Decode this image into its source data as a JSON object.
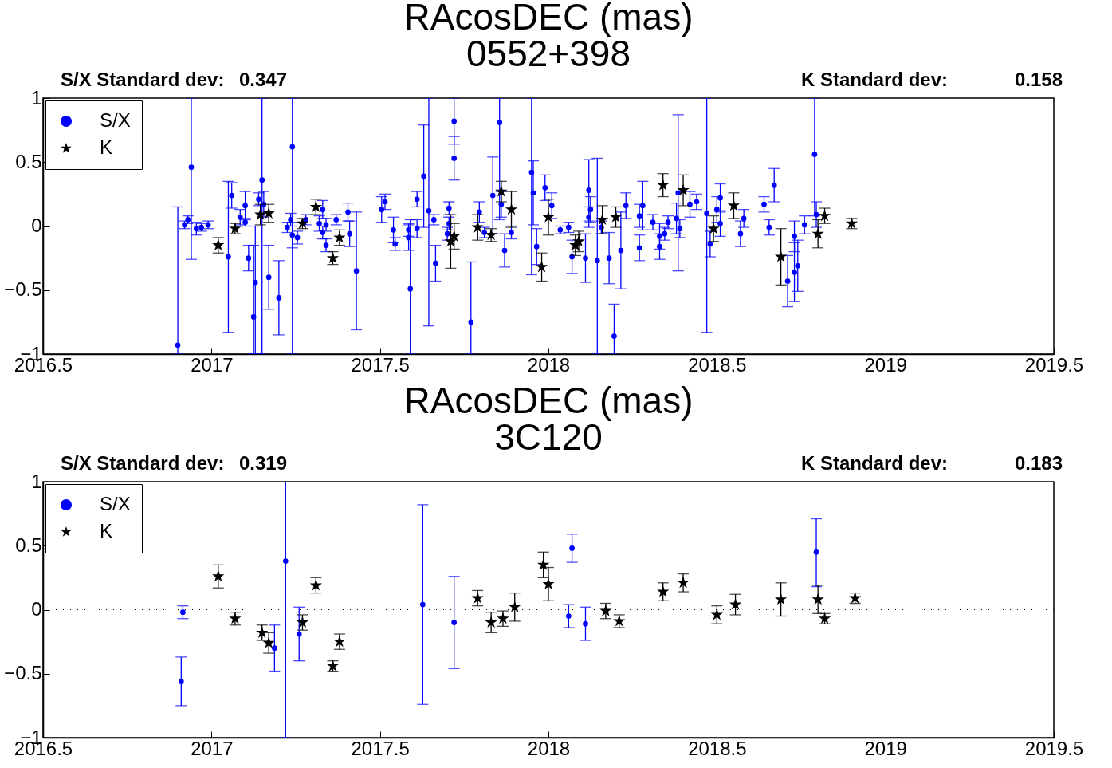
{
  "chart_data": [
    {
      "type": "scatter",
      "title": "RAcosDEC (mas)",
      "subtitle": "0552+398",
      "annotations": [
        "S/X Standard dev:",
        "0.347",
        "K Standard dev:",
        "0.158"
      ],
      "xlim": [
        2016.5,
        2019.5
      ],
      "xticks": [
        2016.5,
        2017,
        2017.5,
        2018,
        2018.5,
        2019,
        2019.5
      ],
      "ylim": [
        -1,
        1
      ],
      "yticks": [
        -1,
        -0.5,
        0,
        0.5,
        1
      ],
      "legend": "top left",
      "ref_lines": [
        {
          "axis": "y",
          "value": 0,
          "color": "#000000",
          "line_style": "dotted"
        }
      ],
      "series": [
        {
          "name": "S/X",
          "color": "#0000ff",
          "marker": "circle",
          "x": [
            2016.9,
            2016.92,
            2016.93,
            2016.94,
            2016.955,
            2016.97,
            2016.99,
            2017.05,
            2017.06,
            2017.085,
            2017.1,
            2017.1,
            2017.11,
            2017.125,
            2017.13,
            2017.14,
            2017.15,
            2017.155,
            2017.17,
            2017.2,
            2017.225,
            2017.235,
            2017.24,
            2017.24,
            2017.255,
            2017.28,
            2017.32,
            2017.33,
            2017.33,
            2017.34,
            2017.34,
            2017.37,
            2017.405,
            2017.41,
            2017.43,
            2017.505,
            2017.515,
            2017.54,
            2017.545,
            2017.585,
            2017.585,
            2017.59,
            2017.61,
            2017.61,
            2017.63,
            2017.645,
            2017.66,
            2017.665,
            2017.7,
            2017.705,
            2017.705,
            2017.72,
            2017.72,
            2017.77,
            2017.795,
            2017.81,
            2017.835,
            2017.855,
            2017.86,
            2017.87,
            2017.89,
            2017.95,
            2017.955,
            2017.965,
            2017.99,
            2018.01,
            2018.035,
            2018.06,
            2018.07,
            2018.11,
            2018.12,
            2018.12,
            2018.125,
            2018.145,
            2018.157,
            2018.18,
            2018.195,
            2018.215,
            2018.23,
            2018.27,
            2018.27,
            2018.28,
            2018.31,
            2018.33,
            2018.33,
            2018.345,
            2018.355,
            2018.38,
            2018.385,
            2018.39,
            2018.42,
            2018.44,
            2018.47,
            2018.48,
            2018.5,
            2018.51,
            2018.51,
            2018.57,
            2018.58,
            2018.64,
            2018.655,
            2018.67,
            2018.71,
            2018.73,
            2018.73,
            2018.74,
            2018.76,
            2018.79,
            2018.795
          ],
          "values": [
            -0.93,
            0.01,
            0.05,
            0.46,
            -0.02,
            -0.01,
            0.01,
            -0.24,
            0.24,
            0.07,
            0.03,
            0.16,
            -0.25,
            -0.71,
            -0.44,
            0.21,
            0.36,
            0.17,
            -0.4,
            -0.56,
            -0.01,
            0.05,
            0.62,
            -0.07,
            -0.09,
            0.05,
            0.02,
            0.13,
            -0.05,
            0.01,
            -0.15,
            0.05,
            0.11,
            -0.06,
            -0.35,
            0.13,
            0.19,
            -0.03,
            -0.14,
            -0.03,
            -0.09,
            -0.49,
            0.21,
            -0.02,
            0.39,
            0.12,
            0.05,
            -0.29,
            -0.06,
            0.14,
            0.02,
            0.82,
            0.53,
            -0.75,
            0.11,
            -0.05,
            0.24,
            0.81,
            0.17,
            -0.19,
            -0.05,
            0.42,
            0.26,
            -0.16,
            0.3,
            0.16,
            -0.03,
            -0.01,
            -0.24,
            -0.25,
            0.28,
            0.07,
            0.13,
            -0.27,
            -0.01,
            -0.25,
            -0.86,
            -0.19,
            0.16,
            0.08,
            -0.17,
            0.16,
            0.03,
            -0.08,
            -0.16,
            -0.06,
            0.03,
            0.06,
            0.26,
            -0.02,
            0.17,
            0.19,
            0.1,
            -0.14,
            0.13,
            0.22,
            0.02,
            -0.06,
            0.06,
            0.17,
            -0.01,
            0.32,
            -0.43,
            -0.08,
            -0.36,
            -0.31,
            0.01,
            0.56,
            0.09
          ],
          "errors": [
            [
              -1,
              0.15
            ],
            0.03,
            0.03,
            [
              -0.26,
              1
            ],
            0.05,
            0.03,
            0.03,
            0.59,
            0.1,
            0.06,
            0.03,
            0.11,
            0.1,
            [
              -1,
              -0.15
            ],
            [
              -1,
              0.0
            ],
            0.05,
            [
              -1,
              1
            ],
            0.1,
            0.25,
            0.29,
            0.04,
            0.05,
            [
              -1,
              1
            ],
            0.1,
            0.05,
            0.04,
            0.06,
            0.07,
            0.05,
            0.05,
            0.05,
            0.04,
            0.07,
            0.1,
            0.46,
            0.1,
            0.06,
            0.1,
            0.05,
            0.05,
            0.1,
            [
              -1,
              0.05
            ],
            0.06,
            0.07,
            0.4,
            [
              -0.78,
              1
            ],
            0.04,
            0.14,
            0.05,
            0.05,
            0.05,
            0.18,
            0.17,
            [
              -1,
              -0.28
            ],
            0.08,
            0.04,
            0.3,
            [
              0.05,
              1
            ],
            0.1,
            0.13,
            0.05,
            [
              -0.38,
              1
            ],
            0.25,
            0.14,
            0.1,
            0.1,
            0.03,
            0.04,
            0.13,
            0.19,
            0.24,
            0.08,
            0.1,
            [
              -1,
              0.53
            ],
            0.05,
            0.2,
            [
              -1,
              -0.61
            ],
            0.3,
            0.1,
            0.09,
            0.1,
            0.19,
            0.06,
            0.1,
            0.1,
            0.05,
            0.05,
            0.12,
            0.61,
            0.07,
            0.1,
            0.06,
            [
              -0.83,
              1
            ],
            0.1,
            0.1,
            0.11,
            0.1,
            0.1,
            0.07,
            0.06,
            0.06,
            0.13,
            0.2,
            0.12,
            0.23,
            0.2,
            0.07,
            [
              0.08,
              1
            ],
            0.1
          ]
        },
        {
          "name": "K",
          "color": "#000000",
          "marker": "star",
          "x": [
            2017.02,
            2017.07,
            2017.145,
            2017.17,
            2017.27,
            2017.31,
            2017.36,
            2017.38,
            2017.71,
            2017.72,
            2017.79,
            2017.83,
            2017.86,
            2017.89,
            2017.98,
            2018.0,
            2018.08,
            2018.09,
            2018.16,
            2018.2,
            2018.34,
            2018.4,
            2018.49,
            2018.55,
            2018.69,
            2018.8,
            2018.82,
            2018.9
          ],
          "values": [
            -0.15,
            -0.02,
            0.09,
            0.1,
            0.02,
            0.15,
            -0.25,
            -0.09,
            -0.12,
            -0.08,
            -0.01,
            -0.07,
            0.27,
            0.13,
            -0.32,
            0.07,
            -0.15,
            -0.12,
            0.05,
            0.07,
            0.32,
            0.28,
            -0.02,
            0.16,
            -0.24,
            -0.06,
            0.08,
            0.02
          ],
          "errors": [
            0.06,
            0.04,
            0.08,
            0.07,
            0.04,
            0.06,
            0.05,
            0.06,
            0.21,
            0.1,
            0.1,
            0.05,
            0.08,
            0.14,
            0.11,
            0.14,
            0.08,
            0.08,
            0.11,
            0.08,
            0.09,
            0.12,
            0.1,
            0.1,
            0.22,
            0.11,
            0.06,
            0.04
          ]
        }
      ]
    },
    {
      "type": "scatter",
      "title": "RAcosDEC (mas)",
      "subtitle": "3C120",
      "annotations": [
        "S/X Standard dev:",
        "0.319",
        "K Standard dev:",
        "0.183"
      ],
      "xlim": [
        2016.5,
        2019.5
      ],
      "xticks": [
        2016.5,
        2017,
        2017.5,
        2018,
        2018.5,
        2019,
        2019.5
      ],
      "ylim": [
        -1,
        1
      ],
      "yticks": [
        -1,
        -0.5,
        0,
        0.5,
        1
      ],
      "legend": "top left",
      "ref_lines": [
        {
          "axis": "y",
          "value": 0,
          "color": "#000000",
          "line_style": "dotted"
        }
      ],
      "series": [
        {
          "name": "S/X",
          "color": "#0000ff",
          "marker": "circle",
          "x": [
            2016.91,
            2016.915,
            2017.187,
            2017.22,
            2017.26,
            2017.627,
            2017.72,
            2018.06,
            2018.07,
            2018.11,
            2018.795
          ],
          "values": [
            -0.56,
            -0.02,
            -0.3,
            0.38,
            -0.19,
            0.04,
            -0.1,
            -0.05,
            0.48,
            -0.11,
            0.45
          ],
          "errors": [
            0.19,
            0.05,
            0.18,
            [
              -1,
              1
            ],
            0.21,
            0.78,
            0.36,
            0.09,
            0.11,
            0.13,
            [
              0.18,
              0.71
            ]
          ]
        },
        {
          "name": "K",
          "color": "#000000",
          "marker": "star",
          "x": [
            2017.02,
            2017.07,
            2017.15,
            2017.17,
            2017.27,
            2017.31,
            2017.36,
            2017.38,
            2017.79,
            2017.83,
            2017.865,
            2017.9,
            2017.985,
            2018.0,
            2018.17,
            2018.21,
            2018.34,
            2018.4,
            2018.5,
            2018.555,
            2018.69,
            2018.8,
            2018.82,
            2018.91
          ],
          "values": [
            0.26,
            -0.07,
            -0.18,
            -0.26,
            -0.1,
            0.19,
            -0.44,
            -0.25,
            0.09,
            -0.1,
            -0.07,
            0.02,
            0.35,
            0.2,
            -0.01,
            -0.09,
            0.14,
            0.21,
            -0.04,
            0.04,
            0.08,
            0.08,
            -0.07,
            0.09
          ],
          "errors": [
            0.09,
            0.05,
            0.06,
            0.08,
            0.06,
            0.06,
            0.04,
            0.06,
            0.06,
            0.08,
            0.06,
            0.11,
            0.1,
            0.13,
            0.06,
            0.05,
            0.07,
            0.07,
            0.07,
            0.08,
            0.13,
            0.11,
            0.04,
            0.04
          ]
        }
      ]
    }
  ]
}
